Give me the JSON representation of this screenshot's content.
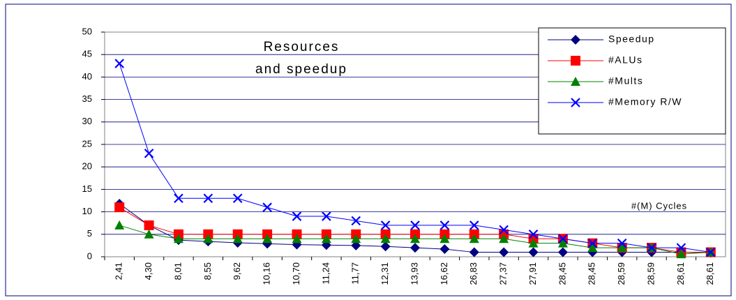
{
  "chart_data": {
    "type": "line",
    "title": [
      "Resources",
      "and speedup"
    ],
    "xlabel": "#(M) Cycles",
    "categories": [
      "2,41",
      "4,30",
      "8,01",
      "8,55",
      "9,62",
      "10,16",
      "10,70",
      "11,24",
      "11,77",
      "12,31",
      "13,93",
      "16,62",
      "26,83",
      "27,37",
      "27,91",
      "28,45",
      "28,45",
      "28,59",
      "28,59",
      "28,61",
      "28,61"
    ],
    "series": [
      {
        "name": "Speedup",
        "color": "#000080",
        "marker": "diamond",
        "values": [
          11.8,
          7,
          3.7,
          3.4,
          3.1,
          2.9,
          2.7,
          2.6,
          2.5,
          2.3,
          2,
          1.7,
          1,
          1,
          1,
          1,
          1,
          1,
          1,
          1,
          0.9
        ]
      },
      {
        "name": "#ALUs",
        "color": "#ff0000",
        "marker": "square",
        "values": [
          11,
          7,
          5,
          5,
          5,
          5,
          5,
          5,
          5,
          5,
          5,
          5,
          5,
          5,
          4,
          4,
          3,
          2,
          2,
          1,
          1
        ]
      },
      {
        "name": "#Mults",
        "color": "#008000",
        "marker": "triangle",
        "values": [
          7,
          5,
          4,
          4,
          4,
          4,
          4,
          4,
          4,
          4,
          4,
          4,
          4,
          4,
          3,
          3,
          2,
          2,
          2,
          0.6,
          1
        ]
      },
      {
        "name": "#Memory R/W",
        "color": "#0000ff",
        "marker": "x",
        "values": [
          43,
          23,
          13,
          13,
          13,
          11,
          9,
          9,
          8,
          7,
          7,
          7,
          7,
          6,
          5,
          4,
          3,
          3,
          2,
          2,
          1
        ]
      }
    ],
    "ylim": [
      0,
      50
    ],
    "yticks": [
      0,
      5,
      10,
      15,
      20,
      25,
      30,
      35,
      40,
      45,
      50
    ],
    "grid": true
  }
}
